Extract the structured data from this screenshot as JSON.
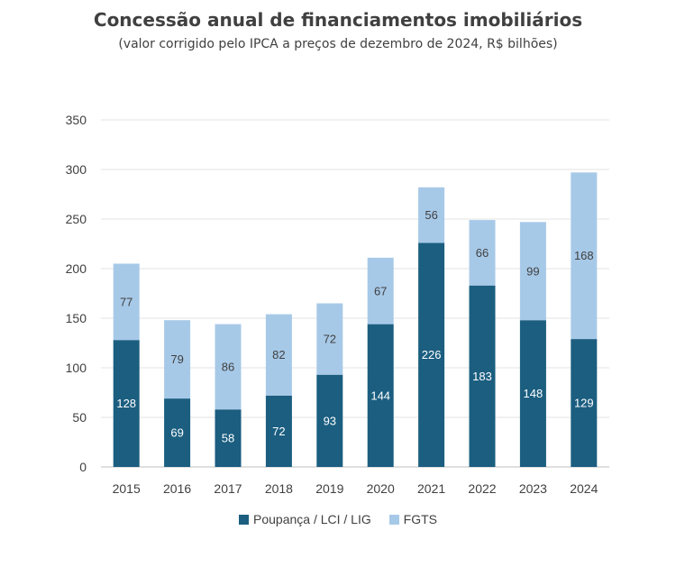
{
  "chart_data": {
    "type": "bar",
    "stacked": true,
    "title": "Concessão anual de financiamentos imobiliários",
    "subtitle": "(valor corrigido pelo IPCA a preços de dezembro de 2024, R$ bilhões)",
    "categories": [
      "2015",
      "2016",
      "2017",
      "2018",
      "2019",
      "2020",
      "2021",
      "2022",
      "2023",
      "2024"
    ],
    "series": [
      {
        "name": "Poupança / LCI / LIG",
        "color": "#1b5e80",
        "label_color": "#ffffff",
        "values": [
          128,
          69,
          58,
          72,
          93,
          144,
          226,
          183,
          148,
          129
        ]
      },
      {
        "name": "FGTS",
        "color": "#a7c9e8",
        "label_color": "#404040",
        "values": [
          77,
          79,
          86,
          82,
          72,
          67,
          56,
          66,
          99,
          168
        ]
      }
    ],
    "ylim": [
      0,
      350
    ],
    "yticks": [
      0,
      50,
      100,
      150,
      200,
      250,
      300,
      350
    ],
    "grid": true,
    "legend_position": "bottom"
  }
}
